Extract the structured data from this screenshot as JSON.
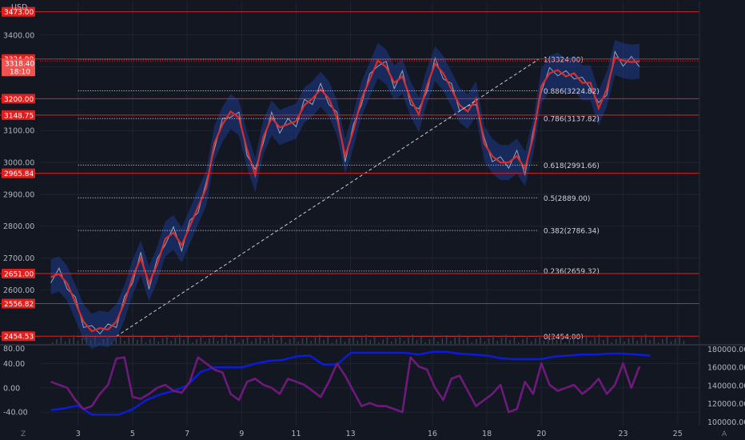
{
  "chart_data": {
    "type": "line",
    "currency": "USD",
    "main_pane": {
      "y_ticks": [
        2600,
        2700,
        2800,
        2900,
        3000,
        3100,
        3200,
        3300,
        3400
      ],
      "y_tick_labels": [
        "2600.00",
        "2700.00",
        "2800.00",
        "2900.00",
        "3000.00",
        "3100.00",
        "3200.00",
        "3300.00",
        "3400.00"
      ],
      "ylim": [
        2430,
        3505
      ],
      "horizontal_levels": [
        {
          "value": 3473.0,
          "label": "3473.00"
        },
        {
          "value": 3324.9,
          "label": "3324.90"
        },
        {
          "value": 3200.0,
          "label": "3200.00"
        },
        {
          "value": 3148.75,
          "label": "3148.75"
        },
        {
          "value": 2965.84,
          "label": "2965.84"
        },
        {
          "value": 2651.0,
          "label": "2651.00"
        },
        {
          "value": 2556.82,
          "label": "2556.82"
        },
        {
          "value": 2454.53,
          "label": "2454.53"
        }
      ],
      "current_price": {
        "value": 3318.4,
        "label": "3318.40",
        "countdown": "18:10"
      },
      "fibonacci": [
        {
          "value": 3324.0,
          "label": "1(3324.00)"
        },
        {
          "value": 3224.82,
          "label": "0.886(3224.82)"
        },
        {
          "value": 3137.82,
          "label": "0.786(3137.82)"
        },
        {
          "value": 2991.66,
          "label": "0.618(2991.66)"
        },
        {
          "value": 2889.0,
          "label": "0.5(2889.00)"
        },
        {
          "value": 2786.34,
          "label": "0.382(2786.34)"
        },
        {
          "value": 2659.32,
          "label": "0.236(2659.32)"
        },
        {
          "value": 2454.0,
          "label": "0(2454.00)"
        }
      ],
      "price_series": {
        "x": [
          2.0,
          2.3,
          2.6,
          2.9,
          3.2,
          3.5,
          3.8,
          4.1,
          4.4,
          4.7,
          5.0,
          5.3,
          5.6,
          5.9,
          6.2,
          6.5,
          6.8,
          7.1,
          7.4,
          7.7,
          8.0,
          8.3,
          8.6,
          8.9,
          9.2,
          9.5,
          9.8,
          10.1,
          10.4,
          10.7,
          11.0,
          11.3,
          11.6,
          11.9,
          12.2,
          12.5,
          12.8,
          13.1,
          13.4,
          13.7,
          14.0,
          14.3,
          14.6,
          14.9,
          15.2,
          15.5,
          15.8,
          16.1,
          16.4,
          16.7,
          17.0,
          17.3,
          17.6,
          17.9,
          18.2,
          18.5,
          18.8,
          19.1,
          19.4,
          19.7,
          20.0,
          20.3,
          20.6,
          20.9,
          21.2,
          21.5,
          21.8,
          22.1,
          22.4,
          22.7,
          23.0,
          23.3,
          23.6
        ],
        "y": [
          2640,
          2650,
          2620,
          2560,
          2500,
          2470,
          2480,
          2475,
          2500,
          2560,
          2640,
          2700,
          2620,
          2680,
          2760,
          2780,
          2740,
          2800,
          2860,
          2920,
          3060,
          3120,
          3160,
          3140,
          3040,
          2960,
          3080,
          3140,
          3110,
          3120,
          3130,
          3180,
          3200,
          3230,
          3200,
          3140,
          3020,
          3100,
          3200,
          3260,
          3320,
          3300,
          3250,
          3270,
          3200,
          3150,
          3240,
          3310,
          3280,
          3230,
          3180,
          3160,
          3200,
          3060,
          3020,
          3000,
          3000,
          3020,
          2980,
          3080,
          3240,
          3280,
          3290,
          3270,
          3280,
          3250,
          3250,
          3170,
          3230,
          3330,
          3320,
          3315,
          3318
        ]
      },
      "volume_note": "volume histogram"
    },
    "x_ticks": [
      {
        "value": 3,
        "label": "3"
      },
      {
        "value": 5,
        "label": "5"
      },
      {
        "value": 7,
        "label": "7"
      },
      {
        "value": 9,
        "label": "9"
      },
      {
        "value": 11,
        "label": "11"
      },
      {
        "value": 13,
        "label": "13"
      },
      {
        "value": 16,
        "label": "16"
      },
      {
        "value": 18,
        "label": "18"
      },
      {
        "value": 20,
        "label": "20"
      },
      {
        "value": 23,
        "label": "23"
      },
      {
        "value": 25,
        "label": "25"
      }
    ],
    "xlim": [
      1.6,
      25.8
    ],
    "oscillator_pane": {
      "left_ticks": [
        {
          "value": 40,
          "label": "40.00"
        },
        {
          "value": 0,
          "label": "0.00"
        },
        {
          "value": -40,
          "label": "-40.00"
        }
      ],
      "left_top_label": "80.00",
      "left_ylim": [
        -62,
        68
      ],
      "right_ticks": [
        {
          "value": 180000,
          "label": "180000.00"
        },
        {
          "value": 160000,
          "label": "160000.00"
        },
        {
          "value": 140000,
          "label": "140000.00"
        },
        {
          "value": 120000,
          "label": "120000.00"
        },
        {
          "value": 100000,
          "label": "100000.00"
        }
      ],
      "right_ylim": [
        96000,
        183000
      ],
      "series": [
        {
          "color": "#0b1bd6",
          "axis": "right",
          "x": [
            2.0,
            2.5,
            3.0,
            3.5,
            4.0,
            4.5,
            5.0,
            5.5,
            6.0,
            6.5,
            7.0,
            7.5,
            8.0,
            8.5,
            9.0,
            9.5,
            10.0,
            10.5,
            11.0,
            11.5,
            12.0,
            12.5,
            13.0,
            13.5,
            14.0,
            14.5,
            15.0,
            15.5,
            16.0,
            16.5,
            17.0,
            17.5,
            18.0,
            18.5,
            19.0,
            19.5,
            20.0,
            20.5,
            21.0,
            21.5,
            22.0,
            22.5,
            23.0,
            23.5,
            24.0
          ],
          "y": [
            113000,
            115000,
            118000,
            108000,
            108000,
            108000,
            114000,
            124000,
            130000,
            134000,
            140000,
            155000,
            160000,
            160000,
            160000,
            164000,
            167000,
            168000,
            172000,
            173000,
            163000,
            163000,
            176000,
            176000,
            176000,
            176000,
            176000,
            174000,
            177000,
            177000,
            175000,
            174000,
            173000,
            170000,
            169000,
            169000,
            169000,
            172000,
            173000,
            174000,
            174000,
            175000,
            175000,
            174000,
            173000
          ]
        },
        {
          "color": "#6e1a7a",
          "axis": "left",
          "x": [
            2.0,
            2.3,
            2.6,
            2.9,
            3.2,
            3.5,
            3.8,
            4.1,
            4.4,
            4.7,
            5.0,
            5.3,
            5.6,
            5.9,
            6.2,
            6.5,
            6.8,
            7.1,
            7.4,
            7.7,
            8.0,
            8.3,
            8.6,
            8.9,
            9.2,
            9.5,
            9.8,
            10.1,
            10.4,
            10.7,
            11.0,
            11.3,
            11.6,
            11.9,
            12.2,
            12.5,
            12.8,
            13.1,
            13.4,
            13.7,
            14.0,
            14.3,
            14.6,
            14.9,
            15.2,
            15.5,
            15.8,
            16.1,
            16.4,
            16.7,
            17.0,
            17.3,
            17.6,
            17.9,
            18.2,
            18.5,
            18.8,
            19.1,
            19.4,
            19.7,
            20.0,
            20.3,
            20.6,
            20.9,
            21.2,
            21.5,
            21.8,
            22.1,
            22.4,
            22.7,
            23.0,
            23.3,
            23.6
          ],
          "y": [
            10,
            5,
            0,
            -20,
            -35,
            -30,
            -10,
            5,
            48,
            50,
            -15,
            -18,
            -10,
            0,
            5,
            -5,
            -8,
            10,
            50,
            40,
            30,
            25,
            -10,
            -20,
            10,
            15,
            5,
            0,
            -10,
            15,
            10,
            5,
            -5,
            -15,
            10,
            40,
            20,
            -5,
            -30,
            -25,
            -30,
            -30,
            -35,
            -40,
            50,
            35,
            30,
            0,
            -20,
            15,
            20,
            -5,
            -30,
            -20,
            -10,
            5,
            -40,
            -35,
            10,
            -10,
            40,
            5,
            -5,
            0,
            5,
            -10,
            0,
            15,
            -10,
            5,
            40,
            0,
            35
          ]
        }
      ]
    },
    "corner_labels": {
      "left": "Z",
      "right": "A"
    }
  }
}
